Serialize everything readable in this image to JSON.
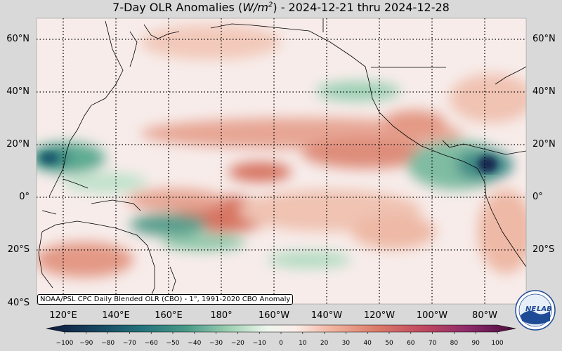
{
  "title": {
    "prefix": "7-Day OLR Anomalies (",
    "unit_base": "W/m",
    "unit_exp": "2",
    "suffix": ") - 2024-12-21 thru 2024-12-28"
  },
  "lat_labels": [
    "60°N",
    "40°N",
    "20°N",
    "0°",
    "20°S",
    "40°S"
  ],
  "lon_labels": [
    "120°E",
    "140°E",
    "160°E",
    "180°",
    "160°W",
    "140°W",
    "120°W",
    "100°W",
    "80°W"
  ],
  "caption": "NOAA/PSL CPC Daily Blended OLR (CBO) - 1°, 1991-2020 CBO Anomaly",
  "colorbar": {
    "ticks": [
      "−100",
      "−90",
      "−80",
      "−70",
      "−60",
      "−50",
      "−40",
      "−30",
      "−20",
      "−10",
      "0",
      "10",
      "20",
      "30",
      "40",
      "50",
      "60",
      "70",
      "80",
      "90",
      "100"
    ]
  },
  "logo": {
    "text_left": "NE",
    "text_right": "LAB",
    "icon": "noaa-psl-logo-icon"
  },
  "colors": {
    "background": "#d9d9d9",
    "neutral": "#f7ecea",
    "positive_mid": "#dc8c7a",
    "negative_mid": "#78bea0",
    "negative_strong": "#0c2a50",
    "positive_strong": "#5a1446"
  }
}
